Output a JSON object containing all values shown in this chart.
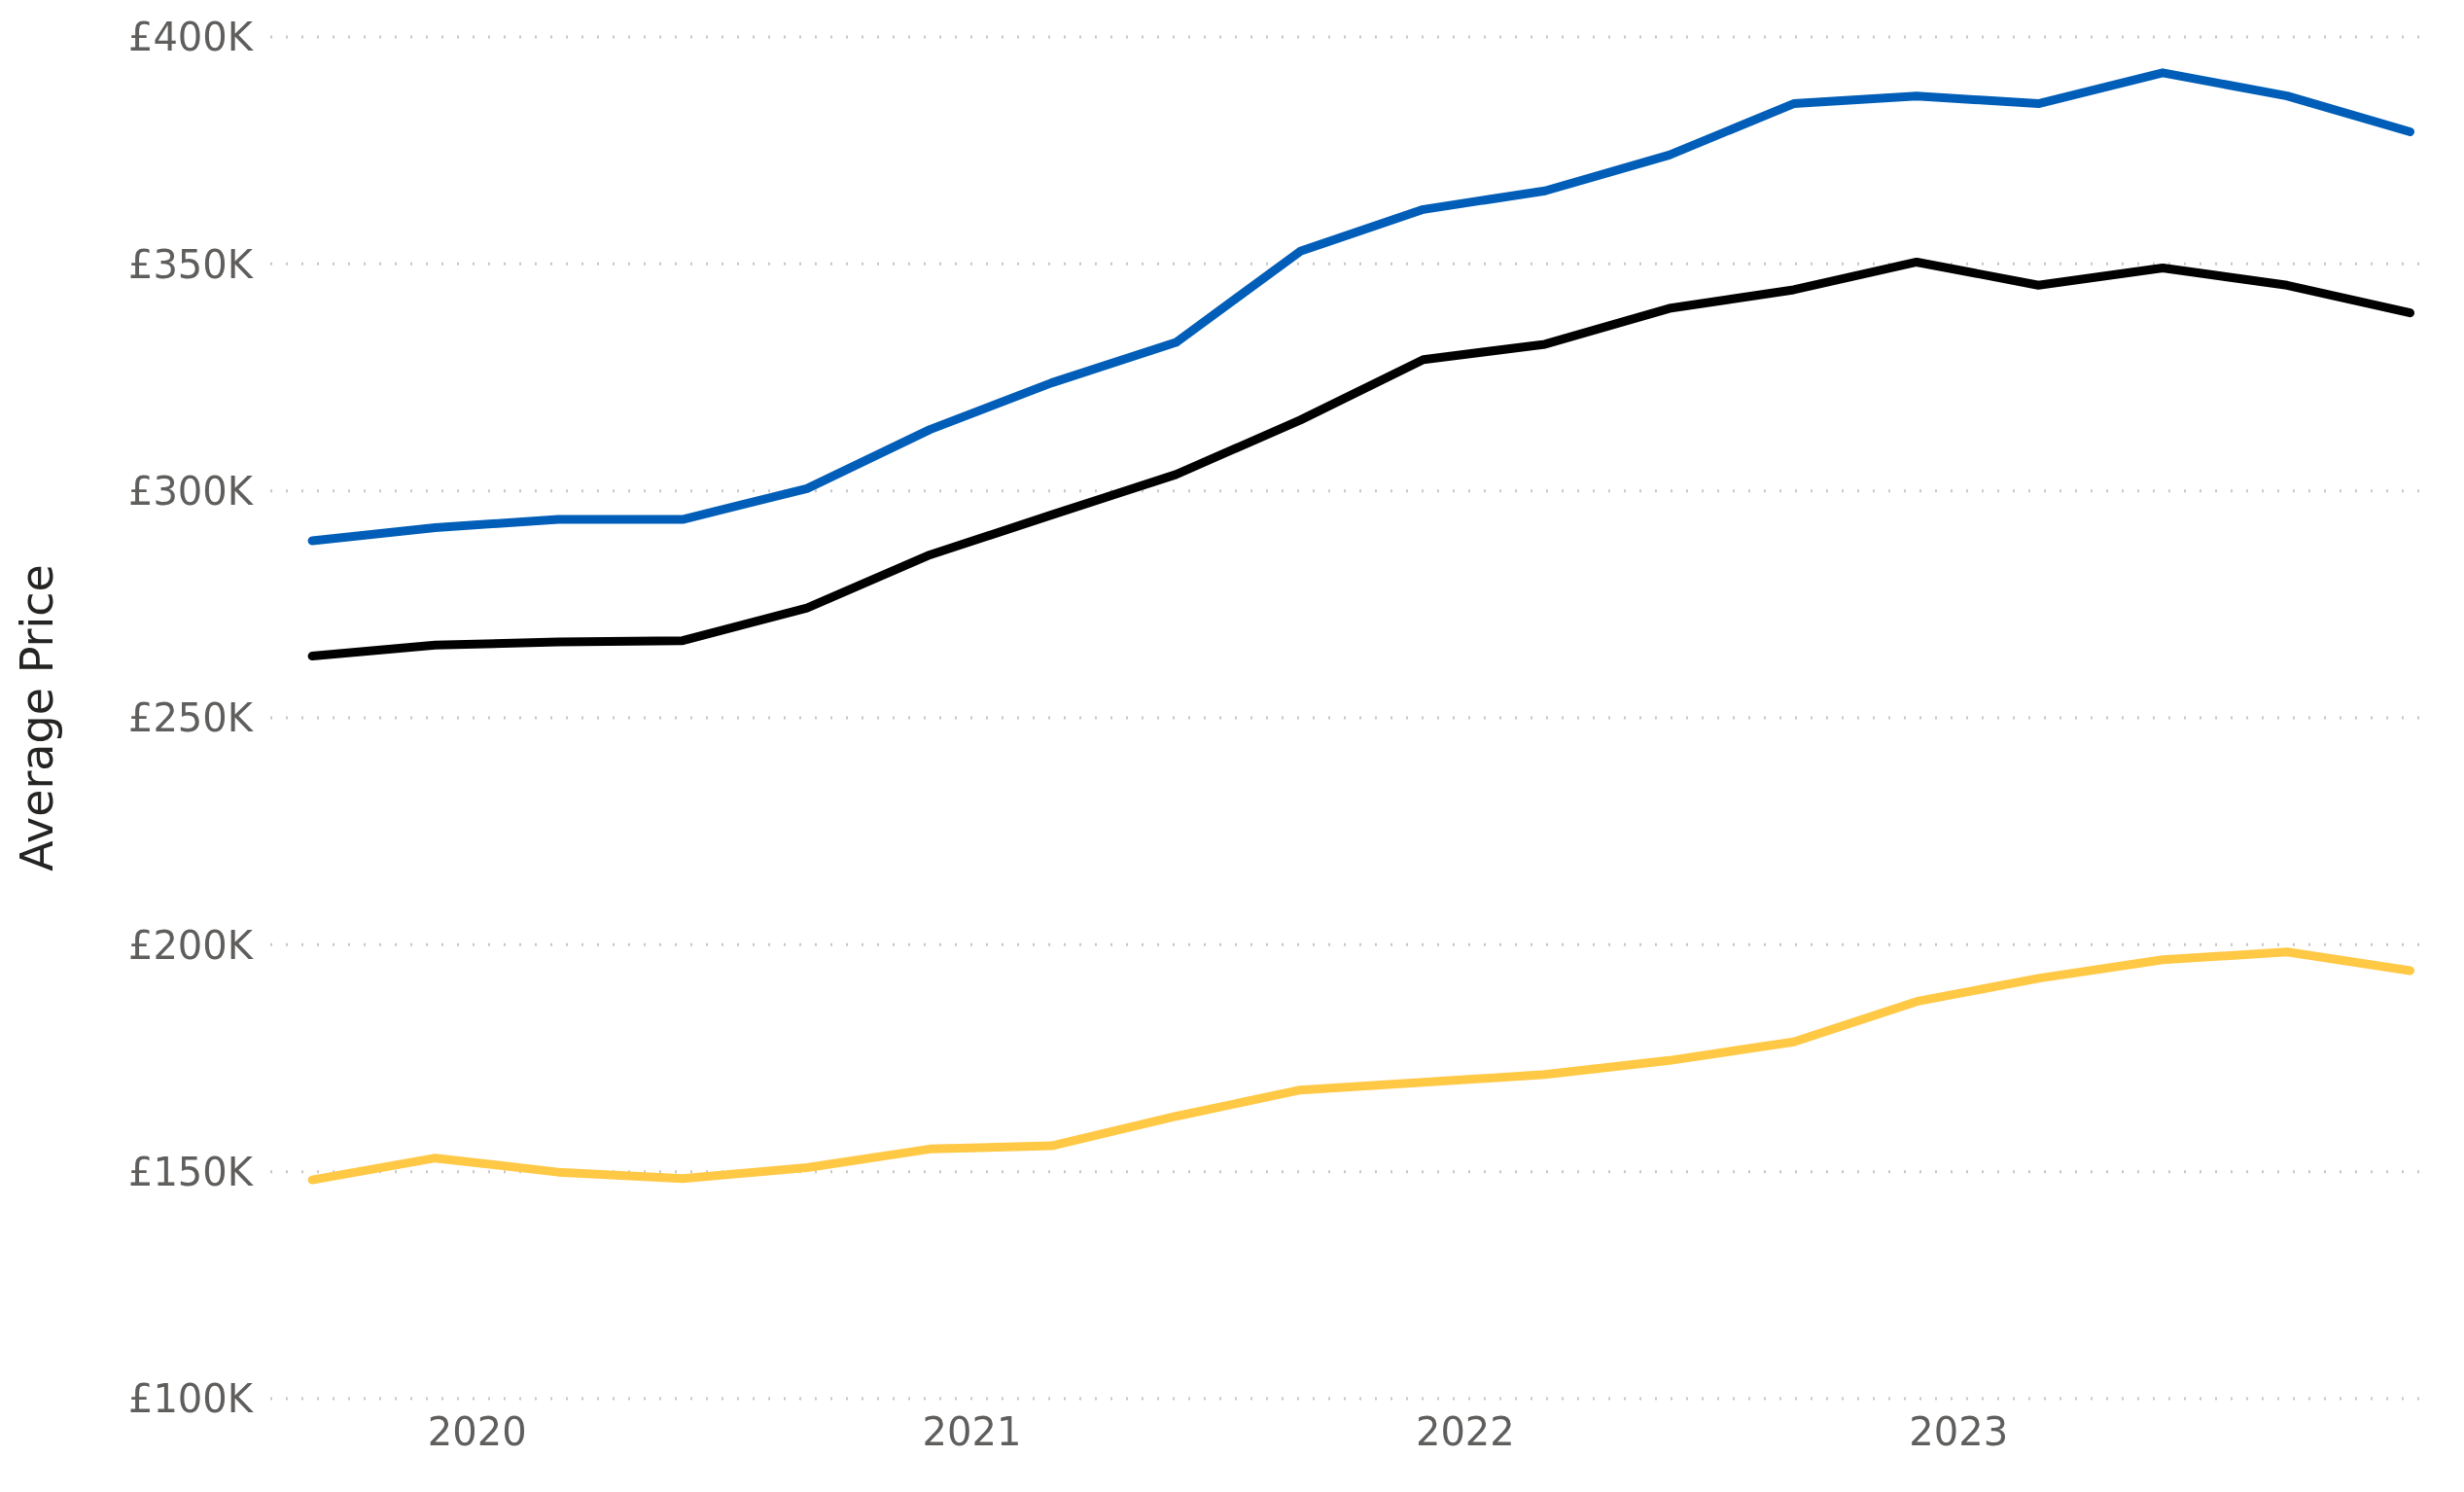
{
  "chart_data": {
    "type": "line",
    "ylabel": "Average Price",
    "x": [
      "2019-09",
      "2019-12",
      "2020-03",
      "2020-06",
      "2020-09",
      "2020-12",
      "2021-03",
      "2021-06",
      "2021-09",
      "2021-12",
      "2022-03",
      "2022-06",
      "2022-09",
      "2022-12",
      "2023-03",
      "2023-06",
      "2023-09",
      "2023-12"
    ],
    "series": [
      {
        "color": "#005eb8",
        "values": [
          289,
          291.9,
          293.7,
          293.7,
          300.5,
          313.5,
          323.8,
          332.7,
          352.8,
          362,
          366.1,
          374,
          385.3,
          387,
          385.3,
          392.1,
          387,
          379.1
        ]
      },
      {
        "color": "#000000",
        "values": [
          263.6,
          266,
          266.7,
          267,
          274.2,
          285.9,
          294.7,
          303.6,
          315.6,
          328.9,
          332.3,
          340.2,
          344.3,
          350.4,
          345.3,
          349.1,
          345.3,
          339.2
        ]
      },
      {
        "color": "#ffc845",
        "values": [
          148.2,
          153,
          149.9,
          148.5,
          150.9,
          155,
          155.7,
          162.2,
          168,
          169.7,
          171.4,
          174.5,
          178.6,
          187.5,
          192.6,
          196.7,
          198.4,
          194.3
        ]
      }
    ],
    "xlim": [
      "2019-08",
      "2023-12-15"
    ],
    "xticks": [
      {
        "value": "2020",
        "label": "2020"
      },
      {
        "value": "2021",
        "label": "2021"
      },
      {
        "value": "2022",
        "label": "2022"
      },
      {
        "value": "2023",
        "label": "2023"
      }
    ],
    "ylim": [
      100,
      400
    ],
    "yticks": [
      {
        "value": 100,
        "label": "£100K"
      },
      {
        "value": 150,
        "label": "£150K"
      },
      {
        "value": 200,
        "label": "£200K"
      },
      {
        "value": 250,
        "label": "£250K"
      },
      {
        "value": 300,
        "label": "£300K"
      },
      {
        "value": 350,
        "label": "£350K"
      },
      {
        "value": 400,
        "label": "£400K"
      }
    ],
    "grid": "y",
    "marker": "none",
    "line_style": "solid"
  }
}
